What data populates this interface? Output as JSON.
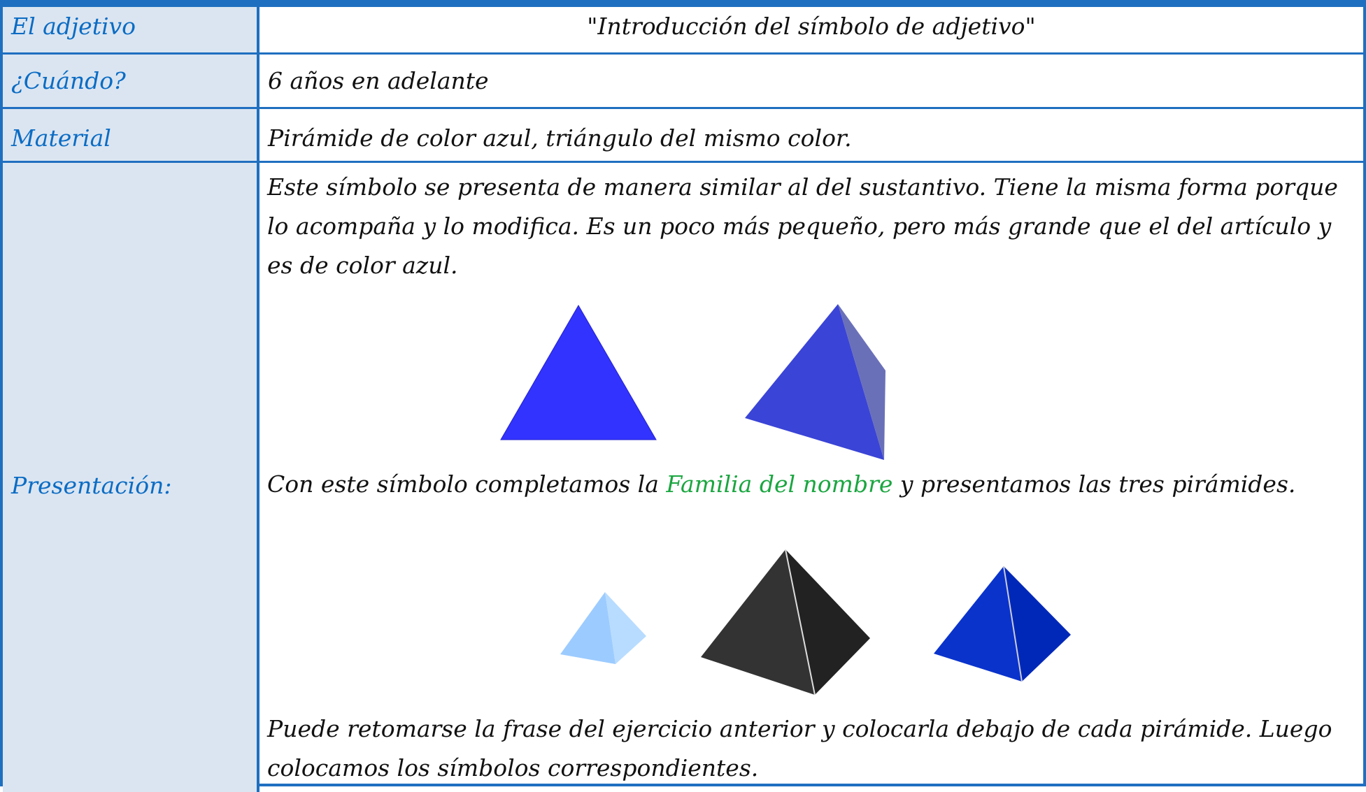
{
  "table": {
    "rows": [
      {
        "label": "El adjetivo",
        "content": "\"Introducción del símbolo de adjetivo\""
      },
      {
        "label": "¿Cuándo?",
        "content": "6 años en adelante"
      },
      {
        "label": "Material",
        "content": "Pirámide de color azul, triángulo del mismo color."
      },
      {
        "label": "Presentación:",
        "paragraphs": [
          {
            "text": "Este símbolo se presenta de manera similar al del sustantivo. Tiene la misma forma porque lo acompaña y lo modifica. Es un poco más pequeño, pero más grande que el del artículo y es de color azul."
          },
          {
            "before": "Con este símbolo completamos la ",
            "highlight": "Familia del nombre",
            "after": " y presentamos las tres pirámides."
          },
          {
            "text": "Puede retomarse la frase del ejercicio anterior y colocarla debajo de cada pirámide. Luego colocamos los símbolos correspondientes."
          }
        ]
      }
    ]
  }
}
